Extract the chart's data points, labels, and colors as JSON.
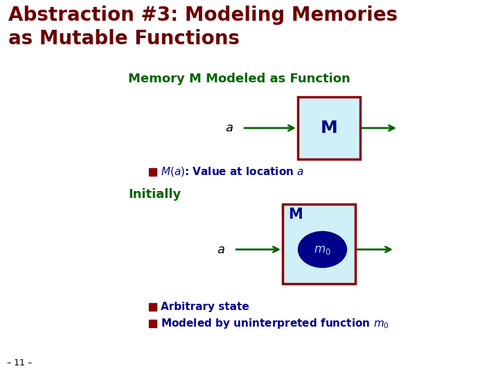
{
  "title_line1": "Abstraction #3: Modeling Memories",
  "title_line2": "as Mutable Functions",
  "title_color": "#6B0000",
  "title_fontsize": 20,
  "subtitle1": "Memory M Modeled as Function",
  "subtitle_color": "#006400",
  "subtitle_fontsize": 13,
  "box_fill": "#d0f0f8",
  "box_edge": "#8B0000",
  "arrow_color": "#006400",
  "label_a_color": "#000000",
  "M_label_color": "#00008B",
  "bullet_color": "#8B0000",
  "body_text_color": "#00008B",
  "initially_text": "Initially",
  "initially_color": "#006400",
  "initially_fontsize": 13,
  "ellipse_fill": "#00008B",
  "m0_color": "#a0d8ef",
  "bullet2_text": "Arbitrary state",
  "bullet3_text_pre": "Modeled by uninterpreted function ",
  "footer_text": "– 11 –",
  "footer_color": "#000000",
  "background_color": "#ffffff"
}
